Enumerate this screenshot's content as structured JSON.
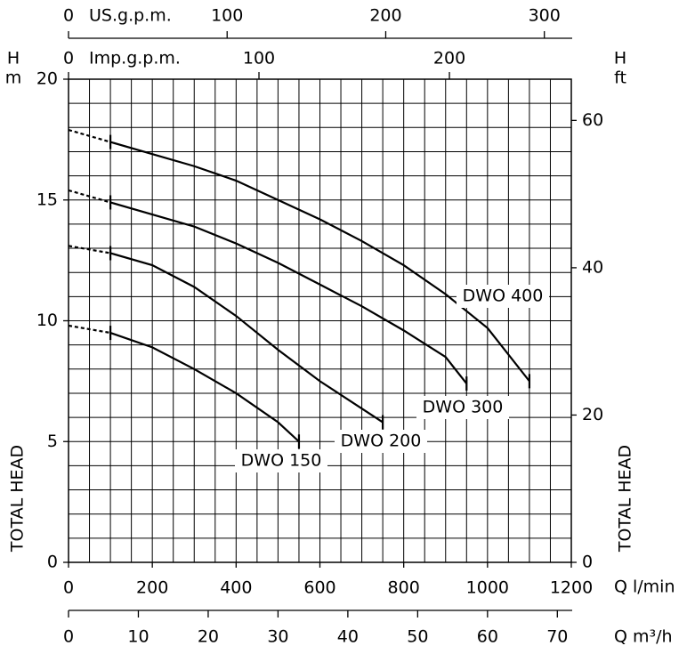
{
  "chart_data": {
    "type": "line",
    "y_symbol_left": "H",
    "y_unit_left": "m",
    "y_symbol_right": "H",
    "y_unit_right": "ft",
    "y_title": "TOTAL HEAD",
    "x_title": "Q  l/min",
    "xlim": [
      0,
      1200
    ],
    "xticks": [
      0,
      200,
      400,
      600,
      800,
      1000,
      1200
    ],
    "ylim": [
      0,
      20
    ],
    "yticks": [
      0,
      5,
      10,
      15,
      20
    ],
    "y2lim": [
      0,
      65.6
    ],
    "y2ticks": [
      0,
      20,
      40,
      60
    ],
    "grid": true,
    "xgrid": [
      0,
      50,
      100,
      150,
      200,
      250,
      300,
      350,
      400,
      450,
      500,
      550,
      600,
      650,
      700,
      750,
      800,
      850,
      900,
      950,
      1000,
      1050,
      1100,
      1150,
      1200
    ],
    "ygrid": [
      0,
      1,
      2,
      3,
      4,
      5,
      6,
      7,
      8,
      9,
      10,
      11,
      12,
      13,
      14,
      15,
      16,
      17,
      18,
      19,
      20
    ],
    "extra_x_axes": [
      {
        "title": "US.g.p.m.",
        "lim": [
          0,
          317
        ],
        "ticks": [
          0,
          100,
          200,
          300
        ]
      },
      {
        "title": "Imp.g.p.m.",
        "lim": [
          0,
          264
        ],
        "ticks": [
          0,
          100,
          200
        ]
      },
      {
        "title": "Q  m³/h",
        "lim": [
          0,
          72
        ],
        "ticks": [
          0,
          10,
          20,
          30,
          40,
          50,
          60,
          70
        ]
      }
    ],
    "series": [
      {
        "name": "DWO  400",
        "color": "#000000",
        "x": [
          0,
          100,
          200,
          300,
          400,
          500,
          600,
          700,
          800,
          900,
          1000,
          1100
        ],
        "values": [
          17.9,
          17.4,
          16.9,
          16.4,
          15.8,
          15.0,
          14.2,
          13.3,
          12.3,
          11.1,
          9.7,
          7.5
        ]
      },
      {
        "name": "DWO  300",
        "color": "#000000",
        "x": [
          0,
          100,
          200,
          300,
          400,
          500,
          600,
          700,
          800,
          900,
          950
        ],
        "values": [
          15.4,
          14.9,
          14.4,
          13.9,
          13.2,
          12.4,
          11.5,
          10.6,
          9.6,
          8.5,
          7.4
        ]
      },
      {
        "name": "DWO  200",
        "color": "#000000",
        "x": [
          0,
          100,
          200,
          300,
          400,
          500,
          600,
          750
        ],
        "values": [
          13.1,
          12.8,
          12.3,
          11.4,
          10.2,
          8.8,
          7.5,
          5.8
        ]
      },
      {
        "name": "DWO  150",
        "color": "#000000",
        "x": [
          0,
          100,
          200,
          300,
          400,
          500,
          550
        ],
        "values": [
          9.8,
          9.5,
          8.9,
          8.0,
          7.0,
          5.8,
          5.0
        ]
      }
    ]
  }
}
